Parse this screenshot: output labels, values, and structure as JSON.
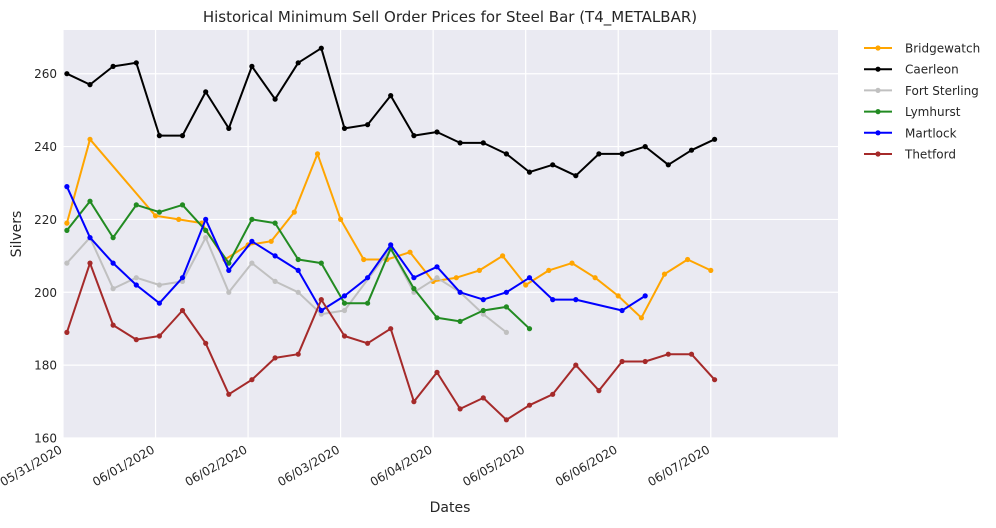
{
  "chart_data": {
    "type": "line",
    "title": "Historical Minimum Sell Order Prices for Steel Bar (T4_METALBAR)",
    "xlabel": "Dates",
    "ylabel": "Silvers",
    "xlim": [
      "2020-05-31T00:00",
      "2020-06-08T09:00"
    ],
    "ylim": [
      160,
      272
    ],
    "grid": true,
    "legend_position": "outside-top-right",
    "x_ticks": [
      "05/31/2020",
      "06/01/2020",
      "06/02/2020",
      "06/03/2020",
      "06/04/2020",
      "06/05/2020",
      "06/06/2020",
      "06/07/2020"
    ],
    "y_ticks": [
      160,
      180,
      200,
      220,
      240,
      260
    ],
    "series": [
      {
        "name": "Bridgewatch",
        "color": "#FFA500",
        "points": [
          [
            "2020-05-31T01:00",
            219
          ],
          [
            "2020-05-31T07:00",
            242
          ],
          [
            "2020-06-01T00:00",
            221
          ],
          [
            "2020-06-01T06:00",
            220
          ],
          [
            "2020-06-01T12:00",
            219
          ],
          [
            "2020-06-01T18:00",
            209
          ],
          [
            "2020-06-02T00:00",
            213
          ],
          [
            "2020-06-02T06:00",
            214
          ],
          [
            "2020-06-02T12:00",
            222
          ],
          [
            "2020-06-02T18:00",
            238
          ],
          [
            "2020-06-03T00:00",
            220
          ],
          [
            "2020-06-03T06:00",
            209
          ],
          [
            "2020-06-03T12:00",
            209
          ],
          [
            "2020-06-03T18:00",
            211
          ],
          [
            "2020-06-04T00:00",
            203
          ],
          [
            "2020-06-04T06:00",
            204
          ],
          [
            "2020-06-04T12:00",
            206
          ],
          [
            "2020-06-04T18:00",
            210
          ],
          [
            "2020-06-05T00:00",
            202
          ],
          [
            "2020-06-05T06:00",
            206
          ],
          [
            "2020-06-05T12:00",
            208
          ],
          [
            "2020-06-05T18:00",
            204
          ],
          [
            "2020-06-06T00:00",
            199
          ],
          [
            "2020-06-06T06:00",
            193
          ],
          [
            "2020-06-06T12:00",
            205
          ],
          [
            "2020-06-06T18:00",
            209
          ],
          [
            "2020-06-07T00:00",
            206
          ]
        ]
      },
      {
        "name": "Caerleon",
        "color": "#000000",
        "points": [
          [
            "2020-05-31T01:00",
            260
          ],
          [
            "2020-05-31T07:00",
            257
          ],
          [
            "2020-05-31T13:00",
            262
          ],
          [
            "2020-05-31T19:00",
            263
          ],
          [
            "2020-06-01T01:00",
            243
          ],
          [
            "2020-06-01T07:00",
            243
          ],
          [
            "2020-06-01T13:00",
            255
          ],
          [
            "2020-06-01T19:00",
            245
          ],
          [
            "2020-06-02T01:00",
            262
          ],
          [
            "2020-06-02T07:00",
            253
          ],
          [
            "2020-06-02T13:00",
            263
          ],
          [
            "2020-06-02T19:00",
            267
          ],
          [
            "2020-06-03T01:00",
            245
          ],
          [
            "2020-06-03T07:00",
            246
          ],
          [
            "2020-06-03T13:00",
            254
          ],
          [
            "2020-06-03T19:00",
            243
          ],
          [
            "2020-06-04T01:00",
            244
          ],
          [
            "2020-06-04T07:00",
            241
          ],
          [
            "2020-06-04T13:00",
            241
          ],
          [
            "2020-06-04T19:00",
            238
          ],
          [
            "2020-06-05T01:00",
            233
          ],
          [
            "2020-06-05T07:00",
            235
          ],
          [
            "2020-06-05T13:00",
            232
          ],
          [
            "2020-06-05T19:00",
            238
          ],
          [
            "2020-06-06T01:00",
            238
          ],
          [
            "2020-06-06T07:00",
            240
          ],
          [
            "2020-06-06T13:00",
            235
          ],
          [
            "2020-06-06T19:00",
            239
          ],
          [
            "2020-06-07T01:00",
            242
          ]
        ]
      },
      {
        "name": "Fort Sterling",
        "color": "#C0C0C0",
        "points": [
          [
            "2020-05-31T01:00",
            208
          ],
          [
            "2020-05-31T07:00",
            215
          ],
          [
            "2020-05-31T13:00",
            201
          ],
          [
            "2020-05-31T19:00",
            204
          ],
          [
            "2020-06-01T01:00",
            202
          ],
          [
            "2020-06-01T07:00",
            203
          ],
          [
            "2020-06-01T13:00",
            215
          ],
          [
            "2020-06-01T19:00",
            200
          ],
          [
            "2020-06-02T01:00",
            208
          ],
          [
            "2020-06-02T07:00",
            203
          ],
          [
            "2020-06-02T13:00",
            200
          ],
          [
            "2020-06-02T19:00",
            194
          ],
          [
            "2020-06-03T01:00",
            195
          ],
          [
            "2020-06-03T13:00",
            212
          ],
          [
            "2020-06-03T19:00",
            200
          ],
          [
            "2020-06-04T01:00",
            204
          ],
          [
            "2020-06-04T07:00",
            200
          ],
          [
            "2020-06-04T13:00",
            194
          ],
          [
            "2020-06-04T19:00",
            189
          ]
        ]
      },
      {
        "name": "Lymhurst",
        "color": "#228B22",
        "points": [
          [
            "2020-05-31T01:00",
            217
          ],
          [
            "2020-05-31T07:00",
            225
          ],
          [
            "2020-05-31T13:00",
            215
          ],
          [
            "2020-05-31T19:00",
            224
          ],
          [
            "2020-06-01T01:00",
            222
          ],
          [
            "2020-06-01T07:00",
            224
          ],
          [
            "2020-06-01T13:00",
            217
          ],
          [
            "2020-06-01T19:00",
            208
          ],
          [
            "2020-06-02T01:00",
            220
          ],
          [
            "2020-06-02T07:00",
            219
          ],
          [
            "2020-06-02T13:00",
            209
          ],
          [
            "2020-06-02T19:00",
            208
          ],
          [
            "2020-06-03T01:00",
            197
          ],
          [
            "2020-06-03T07:00",
            197
          ],
          [
            "2020-06-03T13:00",
            212
          ],
          [
            "2020-06-03T19:00",
            201
          ],
          [
            "2020-06-04T01:00",
            193
          ],
          [
            "2020-06-04T07:00",
            192
          ],
          [
            "2020-06-04T13:00",
            195
          ],
          [
            "2020-06-04T19:00",
            196
          ],
          [
            "2020-06-05T01:00",
            190
          ]
        ]
      },
      {
        "name": "Martlock",
        "color": "#0000FF",
        "points": [
          [
            "2020-05-31T01:00",
            229
          ],
          [
            "2020-05-31T07:00",
            215
          ],
          [
            "2020-05-31T13:00",
            208
          ],
          [
            "2020-05-31T19:00",
            202
          ],
          [
            "2020-06-01T01:00",
            197
          ],
          [
            "2020-06-01T07:00",
            204
          ],
          [
            "2020-06-01T13:00",
            220
          ],
          [
            "2020-06-01T19:00",
            206
          ],
          [
            "2020-06-02T01:00",
            214
          ],
          [
            "2020-06-02T07:00",
            210
          ],
          [
            "2020-06-02T13:00",
            206
          ],
          [
            "2020-06-02T19:00",
            195
          ],
          [
            "2020-06-03T01:00",
            199
          ],
          [
            "2020-06-03T07:00",
            204
          ],
          [
            "2020-06-03T13:00",
            213
          ],
          [
            "2020-06-03T19:00",
            204
          ],
          [
            "2020-06-04T01:00",
            207
          ],
          [
            "2020-06-04T07:00",
            200
          ],
          [
            "2020-06-04T13:00",
            198
          ],
          [
            "2020-06-04T19:00",
            200
          ],
          [
            "2020-06-05T01:00",
            204
          ],
          [
            "2020-06-05T07:00",
            198
          ],
          [
            "2020-06-05T13:00",
            198
          ],
          [
            "2020-06-06T01:00",
            195
          ],
          [
            "2020-06-06T07:00",
            199
          ]
        ]
      },
      {
        "name": "Thetford",
        "color": "#A52A2A",
        "points": [
          [
            "2020-05-31T01:00",
            189
          ],
          [
            "2020-05-31T07:00",
            208
          ],
          [
            "2020-05-31T13:00",
            191
          ],
          [
            "2020-05-31T19:00",
            187
          ],
          [
            "2020-06-01T01:00",
            188
          ],
          [
            "2020-06-01T07:00",
            195
          ],
          [
            "2020-06-01T13:00",
            186
          ],
          [
            "2020-06-01T19:00",
            172
          ],
          [
            "2020-06-02T01:00",
            176
          ],
          [
            "2020-06-02T07:00",
            182
          ],
          [
            "2020-06-02T13:00",
            183
          ],
          [
            "2020-06-02T19:00",
            198
          ],
          [
            "2020-06-03T01:00",
            188
          ],
          [
            "2020-06-03T07:00",
            186
          ],
          [
            "2020-06-03T13:00",
            190
          ],
          [
            "2020-06-03T19:00",
            170
          ],
          [
            "2020-06-04T01:00",
            178
          ],
          [
            "2020-06-04T07:00",
            168
          ],
          [
            "2020-06-04T13:00",
            171
          ],
          [
            "2020-06-04T19:00",
            165
          ],
          [
            "2020-06-05T01:00",
            169
          ],
          [
            "2020-06-05T07:00",
            172
          ],
          [
            "2020-06-05T13:00",
            180
          ],
          [
            "2020-06-05T19:00",
            173
          ],
          [
            "2020-06-06T01:00",
            181
          ],
          [
            "2020-06-06T07:00",
            181
          ],
          [
            "2020-06-06T13:00",
            183
          ],
          [
            "2020-06-06T19:00",
            183
          ],
          [
            "2020-06-07T01:00",
            176
          ]
        ]
      }
    ]
  }
}
